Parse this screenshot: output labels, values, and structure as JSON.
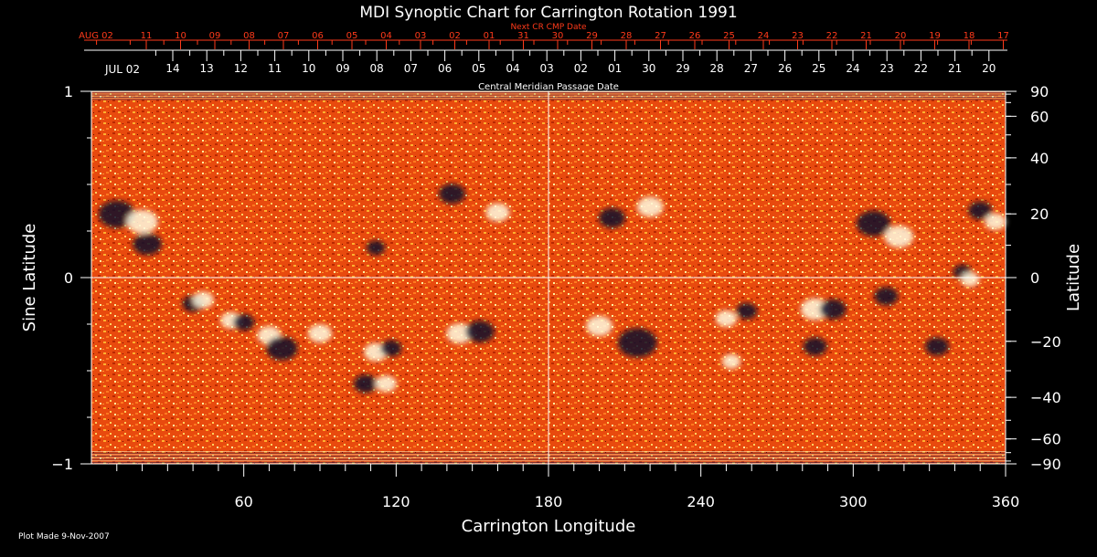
{
  "chart_data": {
    "type": "heatmap",
    "title": "MDI Synoptic Chart for Carrington Rotation 1991",
    "xlabel": "Carrington Longitude",
    "ylabel_left": "Sine Latitude",
    "ylabel_right": "Latitude",
    "xlim": [
      0,
      360
    ],
    "ylim": [
      -1,
      1
    ],
    "x_ticks": [
      "60",
      "120",
      "180",
      "240",
      "300",
      "360"
    ],
    "x_tick_values": [
      60,
      120,
      180,
      240,
      300,
      360
    ],
    "y_left_ticks": [
      "1",
      "0",
      "−1"
    ],
    "y_left_values": [
      1,
      0,
      -1
    ],
    "y_right_ticks": [
      "90",
      "60",
      "40",
      "20",
      "0",
      "−20",
      "−40",
      "−60",
      "−90"
    ],
    "y_right_values": [
      90,
      60,
      40,
      20,
      0,
      -20,
      -40,
      -60,
      -90
    ],
    "top_axis_red": {
      "label": "Next CR CMP Date",
      "first_label": "AUG 02",
      "ticks": [
        "11",
        "10",
        "09",
        "08",
        "07",
        "06",
        "05",
        "04",
        "03",
        "02",
        "01",
        "31",
        "30",
        "29",
        "28",
        "27",
        "26",
        "25",
        "24",
        "23",
        "22",
        "21",
        "20",
        "19",
        "18",
        "17"
      ]
    },
    "top_axis_white": {
      "label": "Central Meridian Passage Date",
      "first_label": "JUL 02",
      "ticks": [
        "14",
        "13",
        "12",
        "11",
        "10",
        "09",
        "08",
        "07",
        "06",
        "05",
        "04",
        "03",
        "02",
        "01",
        "30",
        "29",
        "28",
        "27",
        "26",
        "25",
        "24",
        "23",
        "22",
        "21",
        "20"
      ]
    },
    "regions": [
      {
        "lon": 10,
        "slat": 0.34,
        "polarity": "neg",
        "size": 1.0
      },
      {
        "lon": 20,
        "slat": 0.3,
        "polarity": "pos",
        "size": 0.8
      },
      {
        "lon": 22,
        "slat": 0.18,
        "polarity": "neg",
        "size": 0.7
      },
      {
        "lon": 40,
        "slat": -0.14,
        "polarity": "neg",
        "size": 0.4
      },
      {
        "lon": 44,
        "slat": -0.12,
        "polarity": "pos",
        "size": 0.4
      },
      {
        "lon": 55,
        "slat": -0.23,
        "polarity": "pos",
        "size": 0.4
      },
      {
        "lon": 60,
        "slat": -0.24,
        "polarity": "neg",
        "size": 0.4
      },
      {
        "lon": 70,
        "slat": -0.31,
        "polarity": "pos",
        "size": 0.5
      },
      {
        "lon": 75,
        "slat": -0.38,
        "polarity": "neg",
        "size": 0.8
      },
      {
        "lon": 90,
        "slat": -0.3,
        "polarity": "pos",
        "size": 0.5
      },
      {
        "lon": 112,
        "slat": -0.4,
        "polarity": "pos",
        "size": 0.5
      },
      {
        "lon": 118,
        "slat": -0.38,
        "polarity": "neg",
        "size": 0.4
      },
      {
        "lon": 108,
        "slat": -0.57,
        "polarity": "neg",
        "size": 0.5
      },
      {
        "lon": 116,
        "slat": -0.57,
        "polarity": "pos",
        "size": 0.4
      },
      {
        "lon": 145,
        "slat": -0.3,
        "polarity": "pos",
        "size": 0.6
      },
      {
        "lon": 153,
        "slat": -0.29,
        "polarity": "neg",
        "size": 0.7
      },
      {
        "lon": 160,
        "slat": 0.35,
        "polarity": "pos",
        "size": 0.5
      },
      {
        "lon": 142,
        "slat": 0.45,
        "polarity": "neg",
        "size": 0.6
      },
      {
        "lon": 112,
        "slat": 0.16,
        "polarity": "neg",
        "size": 0.3
      },
      {
        "lon": 200,
        "slat": -0.26,
        "polarity": "pos",
        "size": 0.6
      },
      {
        "lon": 215,
        "slat": -0.35,
        "polarity": "neg",
        "size": 1.1
      },
      {
        "lon": 205,
        "slat": 0.32,
        "polarity": "neg",
        "size": 0.6
      },
      {
        "lon": 220,
        "slat": 0.38,
        "polarity": "pos",
        "size": 0.6
      },
      {
        "lon": 250,
        "slat": -0.22,
        "polarity": "pos",
        "size": 0.4
      },
      {
        "lon": 258,
        "slat": -0.18,
        "polarity": "neg",
        "size": 0.4
      },
      {
        "lon": 252,
        "slat": -0.45,
        "polarity": "pos",
        "size": 0.3
      },
      {
        "lon": 285,
        "slat": -0.17,
        "polarity": "pos",
        "size": 0.7
      },
      {
        "lon": 292,
        "slat": -0.17,
        "polarity": "neg",
        "size": 0.6
      },
      {
        "lon": 285,
        "slat": -0.37,
        "polarity": "neg",
        "size": 0.5
      },
      {
        "lon": 308,
        "slat": 0.29,
        "polarity": "neg",
        "size": 0.9
      },
      {
        "lon": 318,
        "slat": 0.22,
        "polarity": "pos",
        "size": 0.7
      },
      {
        "lon": 313,
        "slat": -0.1,
        "polarity": "neg",
        "size": 0.5
      },
      {
        "lon": 333,
        "slat": -0.37,
        "polarity": "neg",
        "size": 0.5
      },
      {
        "lon": 350,
        "slat": 0.36,
        "polarity": "neg",
        "size": 0.5
      },
      {
        "lon": 356,
        "slat": 0.3,
        "polarity": "pos",
        "size": 0.4
      },
      {
        "lon": 343,
        "slat": 0.03,
        "polarity": "neg",
        "size": 0.3
      },
      {
        "lon": 346,
        "slat": -0.01,
        "polarity": "pos",
        "size": 0.3
      }
    ]
  },
  "footer": {
    "plot_made": "Plot Made  9-Nov-2007"
  }
}
